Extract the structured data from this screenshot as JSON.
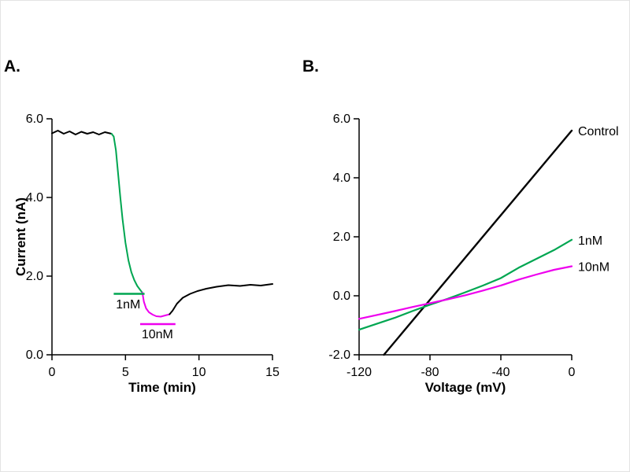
{
  "panels": [
    {
      "label": "A."
    },
    {
      "label": "B."
    }
  ],
  "colors": {
    "trace_black": "#000000",
    "trace_green": "#00a651",
    "trace_magenta": "#ee00ee"
  },
  "chart_data": [
    {
      "type": "line",
      "panel": "A",
      "title": "",
      "xlabel": "Time (min)",
      "ylabel": "Current (nA)",
      "xlim": [
        0,
        15
      ],
      "ylim": [
        0,
        6
      ],
      "grid": false,
      "xticks": [
        {
          "v": 0,
          "t": "0"
        },
        {
          "v": 5,
          "t": "5"
        },
        {
          "v": 10,
          "t": "10"
        },
        {
          "v": 15,
          "t": "15"
        }
      ],
      "yticks": [
        {
          "v": 0,
          "t": "0.0"
        },
        {
          "v": 2,
          "t": "2.0"
        },
        {
          "v": 4,
          "t": "4.0"
        },
        {
          "v": 6,
          "t": "6.0"
        }
      ],
      "series": [
        {
          "name": "baseline",
          "color": "#000000",
          "width": 2,
          "points": [
            [
              0,
              5.63
            ],
            [
              0.4,
              5.7
            ],
            [
              0.8,
              5.62
            ],
            [
              1.2,
              5.68
            ],
            [
              1.6,
              5.6
            ],
            [
              2.0,
              5.67
            ],
            [
              2.4,
              5.62
            ],
            [
              2.8,
              5.66
            ],
            [
              3.2,
              5.6
            ],
            [
              3.6,
              5.66
            ],
            [
              4.05,
              5.62
            ]
          ]
        },
        {
          "name": "1nM-application",
          "color": "#00a651",
          "width": 2,
          "points": [
            [
              4.05,
              5.62
            ],
            [
              4.2,
              5.55
            ],
            [
              4.35,
              5.2
            ],
            [
              4.5,
              4.6
            ],
            [
              4.65,
              4.0
            ],
            [
              4.8,
              3.45
            ],
            [
              5.0,
              2.85
            ],
            [
              5.2,
              2.4
            ],
            [
              5.4,
              2.1
            ],
            [
              5.6,
              1.9
            ],
            [
              5.8,
              1.75
            ],
            [
              6.0,
              1.65
            ],
            [
              6.15,
              1.58
            ]
          ]
        },
        {
          "name": "10nM-application",
          "color": "#ee00ee",
          "width": 2,
          "points": [
            [
              6.15,
              1.58
            ],
            [
              6.25,
              1.35
            ],
            [
              6.4,
              1.18
            ],
            [
              6.6,
              1.08
            ],
            [
              6.85,
              1.02
            ],
            [
              7.1,
              0.98
            ],
            [
              7.4,
              0.97
            ],
            [
              7.7,
              1.0
            ],
            [
              8.0,
              1.03
            ]
          ]
        },
        {
          "name": "washout-recovery",
          "color": "#000000",
          "width": 2,
          "points": [
            [
              8.0,
              1.03
            ],
            [
              8.2,
              1.12
            ],
            [
              8.5,
              1.3
            ],
            [
              8.9,
              1.45
            ],
            [
              9.4,
              1.55
            ],
            [
              9.9,
              1.62
            ],
            [
              10.5,
              1.68
            ],
            [
              11.2,
              1.73
            ],
            [
              12.0,
              1.77
            ],
            [
              12.8,
              1.75
            ],
            [
              13.5,
              1.78
            ],
            [
              14.2,
              1.76
            ],
            [
              15,
              1.8
            ]
          ]
        }
      ],
      "annotations": {
        "bars": [
          {
            "name": "bar-1nM",
            "color": "#00a651",
            "x1": 4.2,
            "x2": 6.3,
            "y": 1.55
          },
          {
            "name": "bar-10nM",
            "color": "#ee00ee",
            "x1": 6.0,
            "x2": 8.4,
            "y": 0.78
          }
        ],
        "texts": [
          {
            "name": "text-1nM",
            "text": "1nM",
            "x": 4.35,
            "y": 1.18
          },
          {
            "name": "text-10nM",
            "text": "10nM",
            "x": 6.1,
            "y": 0.42
          }
        ]
      }
    },
    {
      "type": "line",
      "panel": "B",
      "title": "",
      "xlabel": "Voltage (mV)",
      "ylabel": "",
      "xlim": [
        -120,
        0
      ],
      "ylim": [
        -2,
        6
      ],
      "grid": false,
      "xticks": [
        {
          "v": -120,
          "t": "-120"
        },
        {
          "v": -80,
          "t": "-80"
        },
        {
          "v": -40,
          "t": "-40"
        },
        {
          "v": 0,
          "t": "0"
        }
      ],
      "yticks": [
        {
          "v": -2,
          "t": "-2.0"
        },
        {
          "v": 0,
          "t": "0.0"
        },
        {
          "v": 2,
          "t": "2.0"
        },
        {
          "v": 4,
          "t": "4.0"
        },
        {
          "v": 6,
          "t": "6.0"
        }
      ],
      "series": [
        {
          "name": "Control",
          "label": "Control",
          "label_y": 5.6,
          "color": "#000000",
          "width": 2.4,
          "points": [
            [
              -106,
              -2.0
            ],
            [
              0,
              5.6
            ]
          ]
        },
        {
          "name": "1nM",
          "label": "1nM",
          "label_y": 1.9,
          "color": "#00a651",
          "width": 2.2,
          "points": [
            [
              -120,
              -1.15
            ],
            [
              -110,
              -0.95
            ],
            [
              -100,
              -0.75
            ],
            [
              -90,
              -0.52
            ],
            [
              -80,
              -0.3
            ],
            [
              -70,
              -0.1
            ],
            [
              -60,
              0.12
            ],
            [
              -50,
              0.35
            ],
            [
              -40,
              0.6
            ],
            [
              -30,
              0.95
            ],
            [
              -20,
              1.25
            ],
            [
              -10,
              1.55
            ],
            [
              0,
              1.9
            ]
          ]
        },
        {
          "name": "10nM",
          "label": "10nM",
          "label_y": 1.0,
          "color": "#ee00ee",
          "width": 2.2,
          "points": [
            [
              -120,
              -0.78
            ],
            [
              -110,
              -0.65
            ],
            [
              -100,
              -0.52
            ],
            [
              -90,
              -0.38
            ],
            [
              -80,
              -0.25
            ],
            [
              -70,
              -0.12
            ],
            [
              -60,
              0.02
            ],
            [
              -50,
              0.18
            ],
            [
              -40,
              0.35
            ],
            [
              -30,
              0.55
            ],
            [
              -20,
              0.72
            ],
            [
              -10,
              0.88
            ],
            [
              0,
              1.0
            ]
          ]
        }
      ],
      "annotations": {
        "bars": [],
        "texts": []
      }
    }
  ]
}
